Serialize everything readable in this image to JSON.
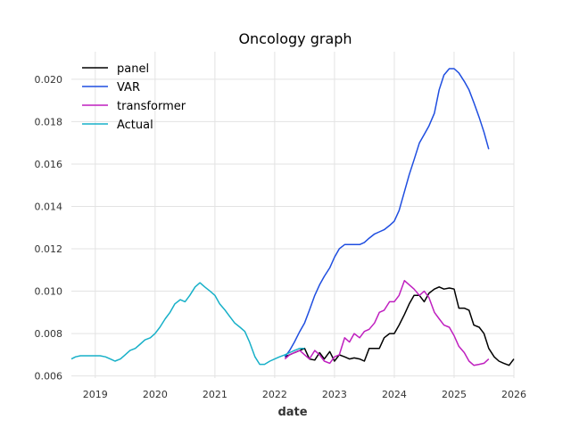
{
  "chart_data": {
    "type": "line",
    "title": "Oncology graph",
    "xlabel": "date",
    "ylabel": "",
    "xlim": [
      2018.6,
      2026.0
    ],
    "ylim": [
      0.0059,
      0.0213
    ],
    "grid": true,
    "legend_position": "top-left",
    "x_ticks": [
      2019,
      2020,
      2021,
      2022,
      2023,
      2024,
      2025,
      2026
    ],
    "x_tick_labels": [
      "2019",
      "2020",
      "2021",
      "2022",
      "2023",
      "2024",
      "2025",
      "2026"
    ],
    "y_ticks": [
      0.006,
      0.008,
      0.01,
      0.012,
      0.014,
      0.016,
      0.018,
      0.02
    ],
    "y_tick_labels": [
      "0.006",
      "0.008",
      "0.010",
      "0.012",
      "0.014",
      "0.016",
      "0.018",
      "0.020"
    ],
    "series": [
      {
        "name": "panel",
        "color": "#000000",
        "x": [
          2022.17,
          2022.25,
          2022.33,
          2022.42,
          2022.5,
          2022.58,
          2022.67,
          2022.75,
          2022.83,
          2022.92,
          2023.0,
          2023.08,
          2023.17,
          2023.25,
          2023.33,
          2023.42,
          2023.5,
          2023.58,
          2023.67,
          2023.75,
          2023.83,
          2023.92,
          2024.0,
          2024.08,
          2024.17,
          2024.25,
          2024.33,
          2024.42,
          2024.5,
          2024.58,
          2024.67,
          2024.75,
          2024.83,
          2024.92,
          2025.0,
          2025.08,
          2025.17,
          2025.25,
          2025.33,
          2025.42,
          2025.5,
          2025.58,
          2025.67,
          2025.75,
          2025.83,
          2025.92,
          2026.0
        ],
        "y": [
          0.0069,
          0.007,
          0.0071,
          0.0072,
          0.0073,
          0.0068,
          0.00675,
          0.0071,
          0.0068,
          0.00715,
          0.0067,
          0.007,
          0.0069,
          0.0068,
          0.00685,
          0.0068,
          0.0067,
          0.0073,
          0.0073,
          0.0073,
          0.0078,
          0.008,
          0.008,
          0.0084,
          0.0089,
          0.0094,
          0.0098,
          0.0098,
          0.0095,
          0.0099,
          0.0101,
          0.0102,
          0.0101,
          0.01015,
          0.0101,
          0.0092,
          0.0092,
          0.0091,
          0.0084,
          0.0083,
          0.008,
          0.0073,
          0.0069,
          0.0067,
          0.0066,
          0.0065,
          0.0068
        ]
      },
      {
        "name": "VAR",
        "color": "#1f4ee0",
        "x": [
          2022.17,
          2022.25,
          2022.33,
          2022.42,
          2022.5,
          2022.58,
          2022.67,
          2022.75,
          2022.83,
          2022.92,
          2023.0,
          2023.08,
          2023.17,
          2023.25,
          2023.33,
          2023.42,
          2023.5,
          2023.58,
          2023.67,
          2023.75,
          2023.83,
          2023.92,
          2024.0,
          2024.08,
          2024.17,
          2024.25,
          2024.33,
          2024.42,
          2024.5,
          2024.58,
          2024.67,
          2024.75,
          2024.83,
          2024.92,
          2025.0,
          2025.08,
          2025.17,
          2025.25,
          2025.33,
          2025.42,
          2025.5,
          2025.58
        ],
        "y": [
          0.0069,
          0.0072,
          0.0076,
          0.0081,
          0.0085,
          0.0091,
          0.0098,
          0.0103,
          0.0107,
          0.0111,
          0.0116,
          0.012,
          0.0122,
          0.0122,
          0.0122,
          0.0122,
          0.0123,
          0.0125,
          0.0127,
          0.0128,
          0.0129,
          0.0131,
          0.0133,
          0.0138,
          0.0147,
          0.0155,
          0.0162,
          0.017,
          0.0174,
          0.0178,
          0.0184,
          0.0195,
          0.0202,
          0.0205,
          0.0205,
          0.0203,
          0.0199,
          0.0195,
          0.0189,
          0.0182,
          0.0175,
          0.0167
        ]
      },
      {
        "name": "transformer",
        "color": "#bf1fbf",
        "x": [
          2022.17,
          2022.25,
          2022.33,
          2022.42,
          2022.5,
          2022.58,
          2022.67,
          2022.75,
          2022.83,
          2022.92,
          2023.0,
          2023.08,
          2023.17,
          2023.25,
          2023.33,
          2023.42,
          2023.5,
          2023.58,
          2023.67,
          2023.75,
          2023.83,
          2023.92,
          2024.0,
          2024.08,
          2024.17,
          2024.25,
          2024.33,
          2024.42,
          2024.5,
          2024.58,
          2024.67,
          2024.75,
          2024.83,
          2024.92,
          2025.0,
          2025.08,
          2025.17,
          2025.25,
          2025.33,
          2025.42,
          2025.5,
          2025.58
        ],
        "y": [
          0.0068,
          0.007,
          0.0071,
          0.0072,
          0.007,
          0.0068,
          0.0072,
          0.007,
          0.0067,
          0.0066,
          0.0069,
          0.007,
          0.0078,
          0.0076,
          0.008,
          0.0078,
          0.0081,
          0.0082,
          0.0085,
          0.009,
          0.0091,
          0.0095,
          0.0095,
          0.0098,
          0.0105,
          0.0103,
          0.0101,
          0.0098,
          0.01,
          0.0097,
          0.009,
          0.0087,
          0.0084,
          0.0083,
          0.0079,
          0.0074,
          0.0071,
          0.0067,
          0.0065,
          0.00655,
          0.0066,
          0.0068
        ]
      },
      {
        "name": "Actual",
        "color": "#17b0c8",
        "x": [
          2018.6,
          2018.67,
          2018.75,
          2018.83,
          2018.92,
          2019.0,
          2019.08,
          2019.17,
          2019.25,
          2019.33,
          2019.42,
          2019.5,
          2019.58,
          2019.67,
          2019.75,
          2019.83,
          2019.92,
          2020.0,
          2020.08,
          2020.17,
          2020.25,
          2020.33,
          2020.42,
          2020.5,
          2020.58,
          2020.67,
          2020.75,
          2020.83,
          2020.92,
          2021.0,
          2021.08,
          2021.17,
          2021.25,
          2021.33,
          2021.42,
          2021.5,
          2021.58,
          2021.67,
          2021.75,
          2021.83,
          2021.92,
          2022.0,
          2022.08,
          2022.17,
          2022.25,
          2022.33,
          2022.42,
          2022.5
        ],
        "y": [
          0.0068,
          0.0069,
          0.00695,
          0.00695,
          0.00695,
          0.00695,
          0.00695,
          0.0069,
          0.0068,
          0.0067,
          0.0068,
          0.007,
          0.0072,
          0.0073,
          0.0075,
          0.0077,
          0.0078,
          0.008,
          0.0083,
          0.0087,
          0.009,
          0.0094,
          0.0096,
          0.0095,
          0.0098,
          0.0102,
          0.0104,
          0.0102,
          0.01,
          0.0098,
          0.0094,
          0.0091,
          0.0088,
          0.0085,
          0.0083,
          0.0081,
          0.0076,
          0.0069,
          0.00655,
          0.00655,
          0.0067,
          0.0068,
          0.0069,
          0.007,
          0.0071,
          0.0072,
          0.0073,
          0.0073
        ]
      }
    ]
  }
}
